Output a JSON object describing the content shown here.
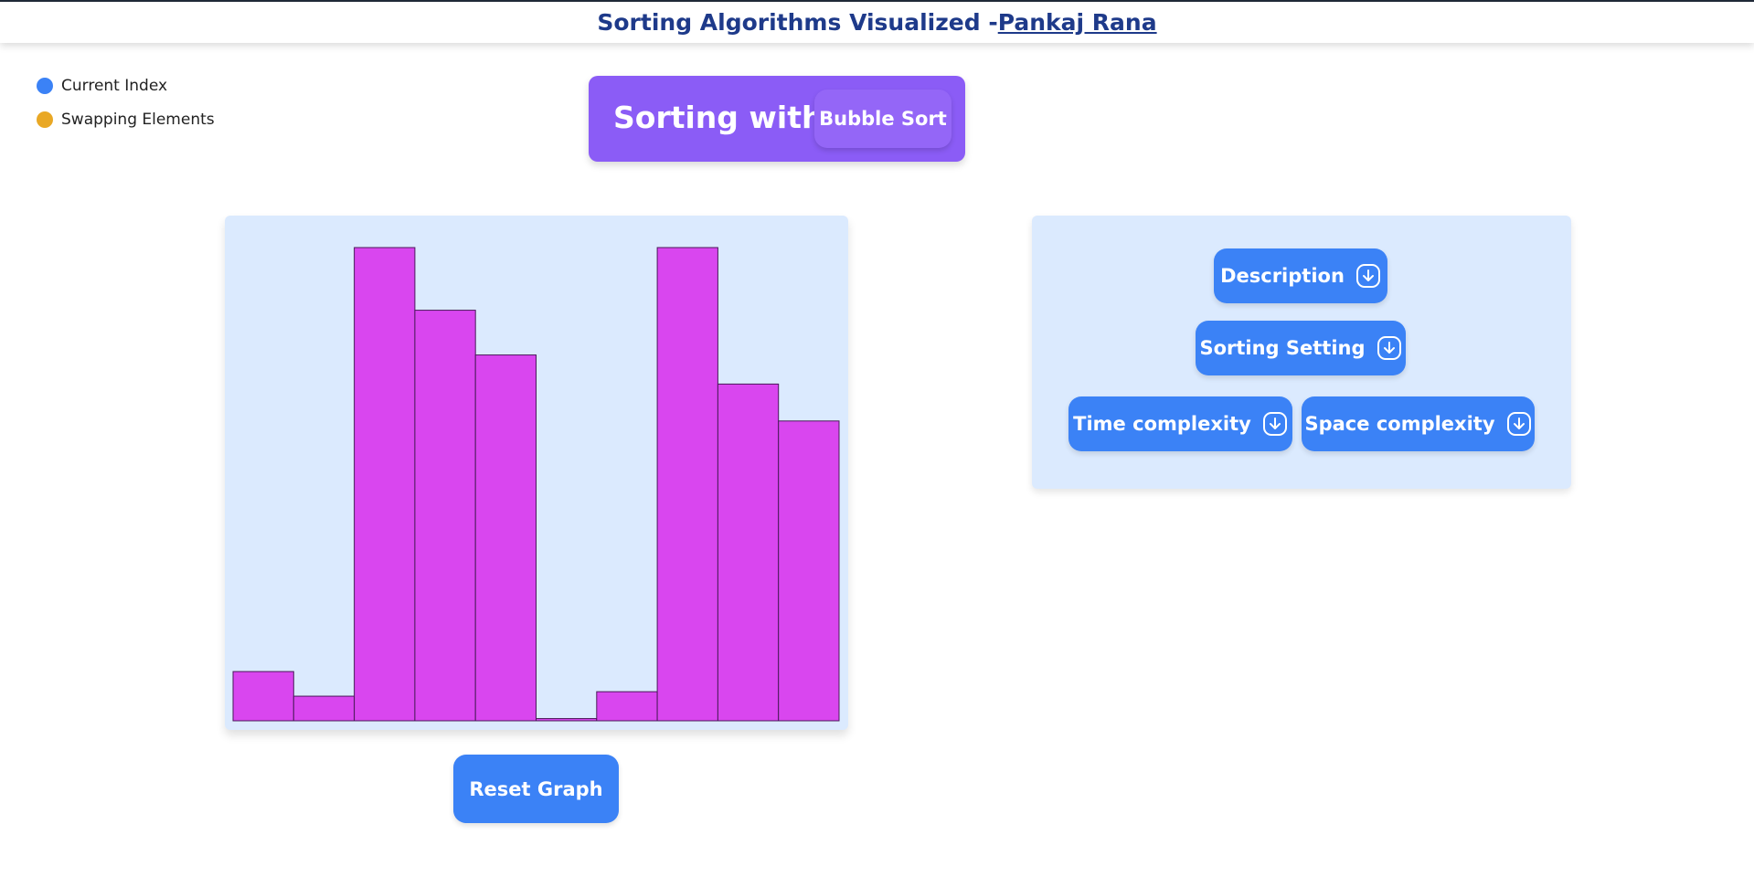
{
  "header": {
    "title": "Sorting Algorithms Visualized -",
    "author": "Pankaj Rana"
  },
  "legend": [
    {
      "label": "Current Index",
      "color": "#3b82f6"
    },
    {
      "label": "Swapping Elements",
      "color": "#e9a825"
    }
  ],
  "banner": {
    "label": "Sorting with",
    "algorithm": "Bubble Sort"
  },
  "bars": {
    "color": "#d946ef",
    "values": [
      44,
      22,
      423,
      367,
      327,
      2,
      26,
      423,
      301,
      268
    ]
  },
  "reset": "Reset Graph",
  "panel": {
    "buttons": [
      "Description",
      "Sorting Setting",
      "Time complexity",
      "Space complexity"
    ]
  }
}
